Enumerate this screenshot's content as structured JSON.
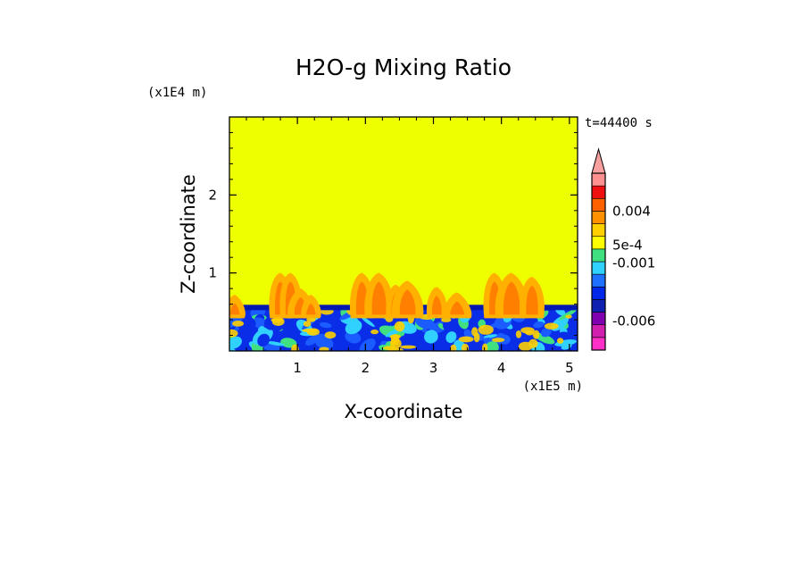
{
  "chart_data": {
    "type": "heatmap",
    "title": "H2O-g Mixing Ratio",
    "xlabel": "X-coordinate",
    "ylabel": "Z-coordinate",
    "x_unit": "(x1E5 m)",
    "y_unit": "(x1E4 m)",
    "time_label": "t=44400 s",
    "xlim": [
      0,
      5.12
    ],
    "ylim": [
      0,
      3
    ],
    "x_ticks": [
      {
        "value": 1,
        "label": "1"
      },
      {
        "value": 2,
        "label": "2"
      },
      {
        "value": 3,
        "label": "3"
      },
      {
        "value": 4,
        "label": "4"
      },
      {
        "value": 5,
        "label": "5"
      }
    ],
    "y_ticks": [
      {
        "value": 1,
        "label": "1"
      },
      {
        "value": 2,
        "label": "2"
      }
    ],
    "background_color": "#eeff00",
    "boundary_layer_top": 0.58,
    "colorbar": {
      "levels": [
        "#ff30c8",
        "#d020b0",
        "#8000b0",
        "#1020b0",
        "#0028e8",
        "#2070ff",
        "#30d0ff",
        "#40e080",
        "#ffff00",
        "#ffd000",
        "#ff9000",
        "#ff6000",
        "#ee1010",
        "#ff9090"
      ],
      "extend_color": "#f8a0a0",
      "labels": [
        {
          "text": "0.004",
          "level": 11
        },
        {
          "text": "5e-4",
          "level": 8.3
        },
        {
          "text": "-0.001",
          "level": 6.9
        },
        {
          "text": "-0.006",
          "level": 2.3
        }
      ]
    },
    "plumes": [
      {
        "x": 0.08,
        "h": 0.72
      },
      {
        "x": 0.75,
        "h": 1.0
      },
      {
        "x": 0.9,
        "h": 1.0
      },
      {
        "x": 1.05,
        "h": 0.8
      },
      {
        "x": 1.2,
        "h": 0.72
      },
      {
        "x": 1.95,
        "h": 1.0
      },
      {
        "x": 2.2,
        "h": 1.0
      },
      {
        "x": 2.45,
        "h": 0.85
      },
      {
        "x": 2.62,
        "h": 0.9
      },
      {
        "x": 3.05,
        "h": 0.82
      },
      {
        "x": 3.35,
        "h": 0.75
      },
      {
        "x": 3.9,
        "h": 1.0
      },
      {
        "x": 4.15,
        "h": 1.0
      },
      {
        "x": 4.45,
        "h": 0.95
      }
    ]
  }
}
